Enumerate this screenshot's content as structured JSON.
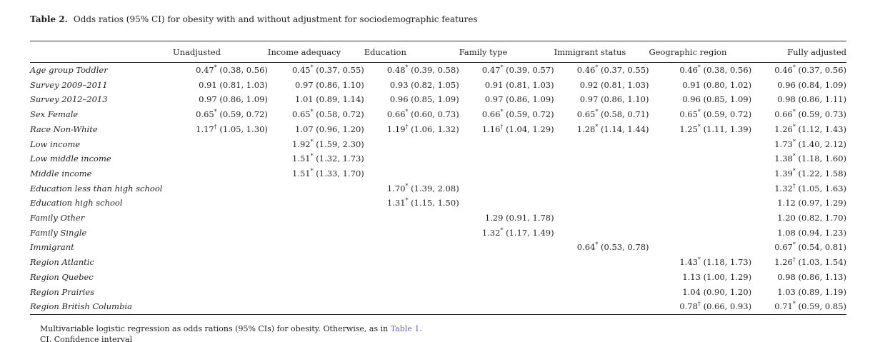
{
  "table": {
    "title_label": "Table 2.",
    "title_text": "Odds ratios (95% CI) for obesity with and without adjustment for sociodemographic features",
    "columns": [
      "",
      "Unadjusted",
      "Income adequacy",
      "Education",
      "Family type",
      "Immigrant status",
      "Geographic region",
      "Fully adjusted"
    ],
    "rows": [
      {
        "label": "Age group Toddler",
        "cells": [
          "0.47* (0.38, 0.56)",
          "0.45* (0.37, 0.55)",
          "0.48* (0.39, 0.58)",
          "0.47* (0.39, 0.57)",
          "0.46* (0.37, 0.55)",
          "0.46* (0.38, 0.56)",
          "0.46* (0.37, 0.56)"
        ]
      },
      {
        "label": "Survey 2009–2011",
        "cells": [
          "0.91 (0.81, 1.03)",
          "0.97 (0.86, 1.10)",
          "0.93 (0.82, 1.05)",
          "0.91 (0.81, 1.03)",
          "0.92 (0.81, 1.03)",
          "0.91 (0.80, 1.02)",
          "0.96 (0.84, 1.09)"
        ]
      },
      {
        "label": "Survey 2012–2013",
        "cells": [
          "0.97 (0.86, 1.09)",
          "1.01 (0.89, 1.14)",
          "0.96 (0.85, 1.09)",
          "0.97 (0.86, 1.09)",
          "0.97 (0.86, 1.10)",
          "0.96 (0.85, 1.09)",
          "0.98 (0.86, 1.11)"
        ]
      },
      {
        "label": "Sex Female",
        "cells": [
          "0.65* (0.59, 0.72)",
          "0.65* (0.58, 0.72)",
          "0.66* (0.60, 0.73)",
          "0.66* (0.59, 0.72)",
          "0.65* (0.58, 0.71)",
          "0.65* (0.59, 0.72)",
          "0.66* (0.59, 0.73)"
        ]
      },
      {
        "label": "Race Non-White",
        "cells": [
          "1.17† (1.05, 1.30)",
          "1.07 (0.96, 1.20)",
          "1.19† (1.06, 1.32)",
          "1.16† (1.04, 1.29)",
          "1.28* (1.14, 1.44)",
          "1.25* (1.11, 1.39)",
          "1.26* (1.12, 1.43)"
        ]
      },
      {
        "label": "Low income",
        "cells": [
          "",
          "1.92* (1.59, 2.30)",
          "",
          "",
          "",
          "",
          "1.73* (1.40, 2.12)"
        ]
      },
      {
        "label": "Low middle income",
        "cells": [
          "",
          "1.51* (1.32, 1.73)",
          "",
          "",
          "",
          "",
          "1.38* (1.18, 1.60)"
        ]
      },
      {
        "label": "Middle income",
        "cells": [
          "",
          "1.51* (1.33, 1.70)",
          "",
          "",
          "",
          "",
          "1.39* (1.22, 1.58)"
        ]
      },
      {
        "label": "Education less than high school",
        "cells": [
          "",
          "",
          "1.70* (1.39, 2.08)",
          "",
          "",
          "",
          "1.32† (1.05, 1.63)"
        ]
      },
      {
        "label": "Education high school",
        "cells": [
          "",
          "",
          "1.31* (1.15, 1.50)",
          "",
          "",
          "",
          "1.12 (0.97, 1.29)"
        ]
      },
      {
        "label": "Family Other",
        "cells": [
          "",
          "",
          "",
          "1.29 (0.91, 1.78)",
          "",
          "",
          "1.20 (0.82, 1.70)"
        ]
      },
      {
        "label": "Family Single",
        "cells": [
          "",
          "",
          "",
          "1.32* (1.17, 1.49)",
          "",
          "",
          "1.08 (0.94, 1.23)"
        ]
      },
      {
        "label": "Immigrant",
        "cells": [
          "",
          "",
          "",
          "",
          "0.64* (0.53, 0.78)",
          "",
          "0.67* (0.54, 0.81)"
        ]
      },
      {
        "label": "Region Atlantic",
        "cells": [
          "",
          "",
          "",
          "",
          "",
          "1.43* (1.18, 1.73)",
          "1.26† (1.03, 1.54)"
        ]
      },
      {
        "label": "Region Quebec",
        "cells": [
          "",
          "",
          "",
          "",
          "",
          "1.13 (1.00, 1.29)",
          "0.98 (0.86, 1.13)"
        ]
      },
      {
        "label": "Region Prairies",
        "cells": [
          "",
          "",
          "",
          "",
          "",
          "1.04 (0.90, 1.20)",
          "1.03 (0.89, 1.19)"
        ]
      },
      {
        "label": "Region British Columbia",
        "cells": [
          "",
          "",
          "",
          "",
          "",
          "0.78† (0.66, 0.93)",
          "0.71* (0.59, 0.85)"
        ]
      }
    ],
    "footnote": {
      "text_before_link": "Multivariable logistic regression as odds rations (95% CIs) for obesity. Otherwise, as in ",
      "link_text": "Table 1",
      "text_after_link": ".",
      "second_line": "CI, Confidence interval"
    },
    "link_color": "#6a5acd"
  }
}
